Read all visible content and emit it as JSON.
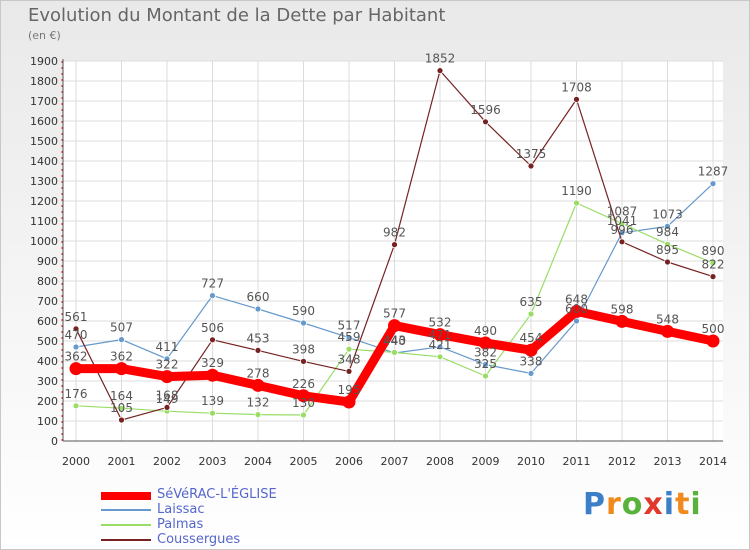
{
  "header": {
    "title": "Evolution du Montant de la Dette par Habitant",
    "subtitle": "(en €)"
  },
  "brand": {
    "text": "Proxiti",
    "letters": [
      "P",
      "r",
      "o",
      "x",
      "i",
      "t",
      "i"
    ]
  },
  "chart_data": {
    "type": "line",
    "title": "Evolution du Montant de la Dette par Habitant",
    "subtitle": "(en €)",
    "xlabel": "",
    "ylabel": "",
    "categories": [
      "2000",
      "2001",
      "2002",
      "2003",
      "2004",
      "2005",
      "2006",
      "2007",
      "2008",
      "2009",
      "2010",
      "2011",
      "2012",
      "2013",
      "2014"
    ],
    "ylim": [
      0,
      1900
    ],
    "yticks": [
      0,
      100,
      200,
      300,
      400,
      500,
      600,
      700,
      800,
      900,
      1000,
      1100,
      1200,
      1300,
      1400,
      1500,
      1600,
      1700,
      1800,
      1900
    ],
    "grid": true,
    "legend": "bottom-left",
    "series": [
      {
        "name": "SéVéRAC-L'ÉGLISE",
        "color": "#ff0000",
        "values": [
          362,
          362,
          322,
          329,
          278,
          226,
          195,
          577,
          532,
          490,
          454,
          648,
          598,
          548,
          500
        ],
        "labels": [
          "362",
          "362",
          "322",
          "329",
          "278",
          "226",
          "195",
          "577",
          "532",
          "490",
          "454",
          "648",
          "598",
          "548",
          "500"
        ]
      },
      {
        "name": "Laissac",
        "color": "#6699cc",
        "values": [
          470,
          507,
          411,
          727,
          660,
          590,
          517,
          440,
          471,
          382,
          338,
          600,
          1041,
          1073,
          1287
        ],
        "labels": [
          "470",
          "507",
          "411",
          "727",
          "660",
          "590",
          "517",
          "440",
          "471",
          "382",
          "338",
          "600",
          "1041",
          "1073",
          "1287"
        ]
      },
      {
        "name": "Palmas",
        "color": "#99dd66",
        "values": [
          176,
          164,
          149,
          139,
          132,
          130,
          459,
          443,
          421,
          325,
          635,
          1190,
          1087,
          984,
          890
        ],
        "labels": [
          "176",
          "164",
          "149",
          "139",
          "132",
          "130",
          "459",
          "443",
          "421",
          "325",
          "635",
          "1190",
          "1087",
          "984",
          "890"
        ]
      },
      {
        "name": "Coussergues",
        "color": "#772222",
        "values": [
          561,
          105,
          168,
          506,
          453,
          398,
          348,
          982,
          1852,
          1596,
          1375,
          1708,
          996,
          895,
          822
        ],
        "labels": [
          "561",
          "105",
          "168",
          "506",
          "453",
          "398",
          "348",
          "982",
          "1852",
          "1596",
          "1375",
          "1708",
          "996",
          "895",
          "822"
        ]
      }
    ]
  }
}
